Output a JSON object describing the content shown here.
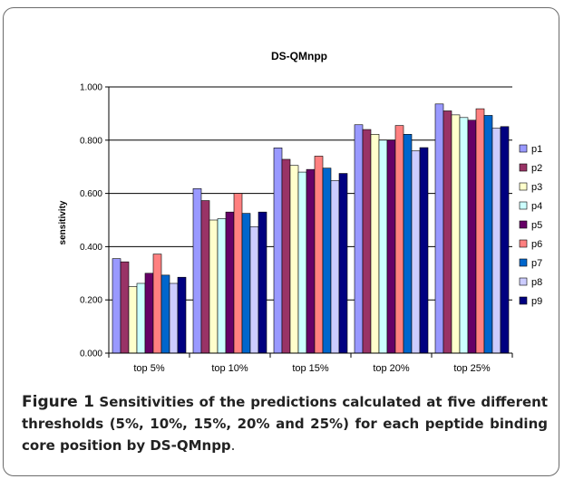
{
  "caption": {
    "lead": "Figure 1",
    "body": "Sensitivities of the predictions calculated at five different thresholds (5%, 10%, 15%, 20% and 25%) for each peptide binding core position by DS-QMnpp",
    "end": "."
  },
  "chart_data": {
    "type": "bar",
    "title": "DS-QMnpp",
    "xlabel": "",
    "ylabel": "sensitivity",
    "ylim": [
      0,
      1
    ],
    "yticks": [
      "0.000",
      "0.200",
      "0.400",
      "0.600",
      "0.800",
      "1.000"
    ],
    "grid": true,
    "legend_position": "right",
    "categories": [
      "top 5%",
      "top 10%",
      "top 15%",
      "top 20%",
      "top 25%"
    ],
    "series": [
      {
        "name": "p1",
        "color": "#9999ff",
        "values": [
          0.355,
          0.618,
          0.771,
          0.858,
          0.936
        ]
      },
      {
        "name": "p2",
        "color": "#993366",
        "values": [
          0.343,
          0.573,
          0.728,
          0.84,
          0.91
        ]
      },
      {
        "name": "p3",
        "color": "#ffffcc",
        "values": [
          0.25,
          0.5,
          0.705,
          0.822,
          0.895
        ]
      },
      {
        "name": "p4",
        "color": "#ccffff",
        "values": [
          0.262,
          0.505,
          0.68,
          0.8,
          0.885
        ]
      },
      {
        "name": "p5",
        "color": "#660066",
        "values": [
          0.3,
          0.53,
          0.69,
          0.8,
          0.875
        ]
      },
      {
        "name": "p6",
        "color": "#ff8080",
        "values": [
          0.372,
          0.6,
          0.74,
          0.855,
          0.918
        ]
      },
      {
        "name": "p7",
        "color": "#0066cc",
        "values": [
          0.293,
          0.525,
          0.695,
          0.822,
          0.893
        ]
      },
      {
        "name": "p8",
        "color": "#ccccff",
        "values": [
          0.262,
          0.475,
          0.648,
          0.76,
          0.845
        ]
      },
      {
        "name": "p9",
        "color": "#000080",
        "values": [
          0.285,
          0.53,
          0.675,
          0.772,
          0.851
        ]
      }
    ]
  }
}
